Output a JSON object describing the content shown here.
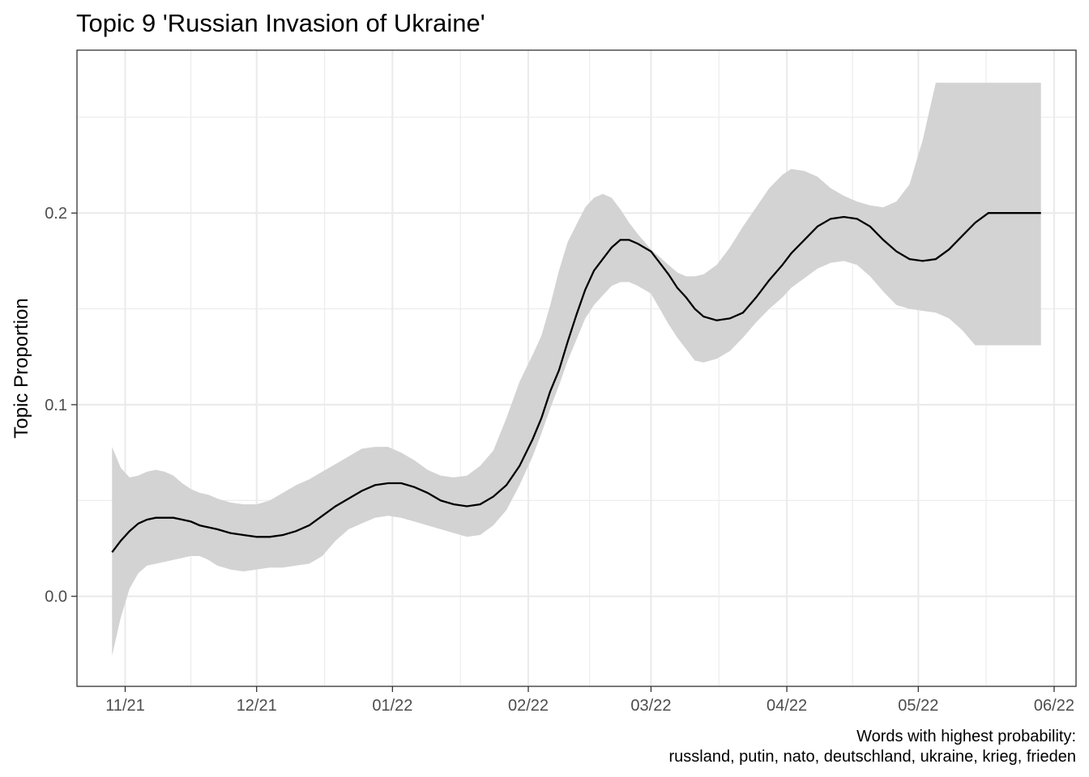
{
  "chart_data": {
    "type": "line",
    "title": "Topic 9 'Russian Invasion of Ukraine'",
    "xlabel": "",
    "ylabel": "Topic Proportion",
    "caption": [
      "Words with highest probability:",
      "russland, putin, nato, deutschland, ukraine, krieg, frieden"
    ],
    "xlim": [
      "2021-10-21",
      "2022-06-06"
    ],
    "ylim": [
      -0.047,
      0.285
    ],
    "x_ticks": [
      {
        "value": "2021-11-01",
        "label": "11/21"
      },
      {
        "value": "2021-12-01",
        "label": "12/21"
      },
      {
        "value": "2022-01-01",
        "label": "01/22"
      },
      {
        "value": "2022-02-01",
        "label": "02/22"
      },
      {
        "value": "2022-03-01",
        "label": "03/22"
      },
      {
        "value": "2022-04-01",
        "label": "04/22"
      },
      {
        "value": "2022-05-01",
        "label": "05/22"
      },
      {
        "value": "2022-06-01",
        "label": "06/22"
      }
    ],
    "y_ticks": [
      {
        "value": 0.0,
        "label": "0.0"
      },
      {
        "value": 0.1,
        "label": "0.1"
      },
      {
        "value": 0.2,
        "label": "0.2"
      }
    ],
    "grid": true,
    "colors": {
      "line": "#000000",
      "band": "#d3d3d3",
      "grid": "#ebebeb",
      "panel_border": "#333333"
    },
    "series": [
      {
        "x": [
          "2021-10-29",
          "2021-10-31",
          "2021-11-02",
          "2021-11-04",
          "2021-11-06",
          "2021-11-08",
          "2021-11-10",
          "2021-11-12",
          "2021-11-14",
          "2021-11-16",
          "2021-11-18",
          "2021-11-20",
          "2021-11-22",
          "2021-11-25",
          "2021-11-28",
          "2021-12-01",
          "2021-12-04",
          "2021-12-07",
          "2021-12-10",
          "2021-12-13",
          "2021-12-16",
          "2021-12-19",
          "2021-12-22",
          "2021-12-25",
          "2021-12-28",
          "2021-12-31",
          "2022-01-03",
          "2022-01-06",
          "2022-01-09",
          "2022-01-12",
          "2022-01-15",
          "2022-01-18",
          "2022-01-21",
          "2022-01-24",
          "2022-01-27",
          "2022-01-30",
          "2022-02-02",
          "2022-02-04",
          "2022-02-06",
          "2022-02-08",
          "2022-02-10",
          "2022-02-12",
          "2022-02-14",
          "2022-02-16",
          "2022-02-18",
          "2022-02-20",
          "2022-02-22",
          "2022-02-24",
          "2022-02-26",
          "2022-03-01",
          "2022-03-03",
          "2022-03-05",
          "2022-03-07",
          "2022-03-09",
          "2022-03-11",
          "2022-03-13",
          "2022-03-16",
          "2022-03-19",
          "2022-03-22",
          "2022-03-25",
          "2022-03-28",
          "2022-03-31",
          "2022-04-02",
          "2022-04-05",
          "2022-04-08",
          "2022-04-11",
          "2022-04-14",
          "2022-04-17",
          "2022-04-20",
          "2022-04-23",
          "2022-04-26",
          "2022-04-29",
          "2022-05-02",
          "2022-05-05",
          "2022-05-08",
          "2022-05-11",
          "2022-05-14",
          "2022-05-17",
          "2022-05-19",
          "2022-05-21",
          "2022-05-23",
          "2022-05-25",
          "2022-05-27",
          "2022-05-29"
        ],
        "y": [
          0.023,
          0.029,
          0.034,
          0.038,
          0.04,
          0.041,
          0.041,
          0.041,
          0.04,
          0.039,
          0.037,
          0.036,
          0.035,
          0.033,
          0.032,
          0.031,
          0.031,
          0.032,
          0.034,
          0.037,
          0.042,
          0.047,
          0.051,
          0.055,
          0.058,
          0.059,
          0.059,
          0.057,
          0.054,
          0.05,
          0.048,
          0.047,
          0.048,
          0.052,
          0.058,
          0.068,
          0.082,
          0.093,
          0.107,
          0.118,
          0.133,
          0.147,
          0.16,
          0.17,
          0.176,
          0.182,
          0.186,
          0.186,
          0.184,
          0.18,
          0.174,
          0.168,
          0.161,
          0.156,
          0.15,
          0.146,
          0.144,
          0.145,
          0.148,
          0.156,
          0.165,
          0.173,
          0.179,
          0.186,
          0.193,
          0.197,
          0.198,
          0.197,
          0.193,
          0.186,
          0.18,
          0.176,
          0.175,
          0.176,
          0.181,
          0.188,
          0.195,
          0.2,
          0.2,
          0.2,
          0.2,
          0.2,
          0.2,
          0.2
        ],
        "lower": [
          -0.031,
          -0.011,
          0.004,
          0.012,
          0.016,
          0.017,
          0.018,
          0.019,
          0.02,
          0.021,
          0.021,
          0.019,
          0.016,
          0.014,
          0.013,
          0.014,
          0.015,
          0.015,
          0.016,
          0.017,
          0.021,
          0.029,
          0.035,
          0.038,
          0.041,
          0.042,
          0.041,
          0.039,
          0.037,
          0.035,
          0.033,
          0.031,
          0.032,
          0.037,
          0.045,
          0.058,
          0.073,
          0.085,
          0.098,
          0.11,
          0.123,
          0.134,
          0.145,
          0.152,
          0.157,
          0.162,
          0.164,
          0.164,
          0.162,
          0.158,
          0.15,
          0.142,
          0.135,
          0.129,
          0.123,
          0.122,
          0.124,
          0.128,
          0.135,
          0.143,
          0.15,
          0.156,
          0.161,
          0.166,
          0.171,
          0.174,
          0.175,
          0.173,
          0.167,
          0.159,
          0.152,
          0.15,
          0.149,
          0.148,
          0.145,
          0.139,
          0.131,
          0.131,
          0.131,
          0.131,
          0.131,
          0.131,
          0.131,
          0.131
        ],
        "upper": [
          0.078,
          0.067,
          0.062,
          0.063,
          0.065,
          0.066,
          0.065,
          0.063,
          0.059,
          0.056,
          0.054,
          0.053,
          0.051,
          0.049,
          0.048,
          0.048,
          0.05,
          0.054,
          0.058,
          0.061,
          0.065,
          0.069,
          0.073,
          0.077,
          0.078,
          0.078,
          0.075,
          0.071,
          0.066,
          0.063,
          0.062,
          0.063,
          0.068,
          0.076,
          0.093,
          0.112,
          0.126,
          0.136,
          0.152,
          0.17,
          0.185,
          0.194,
          0.203,
          0.208,
          0.21,
          0.208,
          0.202,
          0.195,
          0.189,
          0.181,
          0.177,
          0.173,
          0.169,
          0.167,
          0.167,
          0.168,
          0.173,
          0.182,
          0.193,
          0.203,
          0.213,
          0.22,
          0.223,
          0.222,
          0.219,
          0.213,
          0.209,
          0.206,
          0.204,
          0.203,
          0.206,
          0.215,
          0.238,
          0.268,
          0.268,
          0.268,
          0.268,
          0.268,
          0.268,
          0.268,
          0.268,
          0.268,
          0.268,
          0.268
        ]
      }
    ]
  }
}
